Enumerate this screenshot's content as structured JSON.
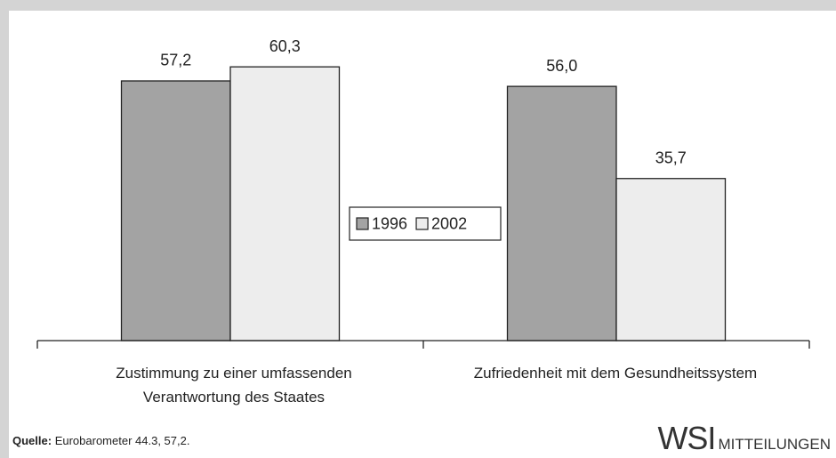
{
  "chart_data": {
    "type": "bar",
    "categories": [
      "Zustimmung zu einer umfassenden Verantwortung des Staates",
      "Zufriedenheit mit dem Gesundheitssystem"
    ],
    "series": [
      {
        "name": "1996",
        "color": "#a3a3a3",
        "values": [
          57.2,
          56.0
        ],
        "value_labels": [
          "57,2",
          "56,0"
        ]
      },
      {
        "name": "2002",
        "color": "#ededed",
        "values": [
          60.3,
          35.7
        ],
        "value_labels": [
          "60,3",
          "35,7"
        ]
      }
    ],
    "legend": "center",
    "source_label": "Quelle:",
    "source": "Eurobarometer 44.3, 57,2.",
    "logo": {
      "main": "WSI",
      "sub": "MITTEILUNGEN"
    }
  }
}
